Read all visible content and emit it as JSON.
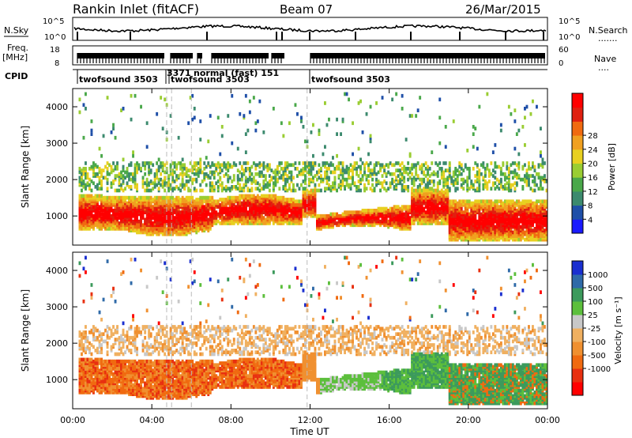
{
  "header": {
    "station": "Rankin Inlet (fitACF)",
    "beam": "Beam 07",
    "date": "26/Mar/2015"
  },
  "left_labels": {
    "nsky": "N.Sky",
    "freq": "Freq.",
    "freq_unit": "[MHz]",
    "cpid": "CPID"
  },
  "right_labels": {
    "nsearch": "N.Search",
    "nave": "Nave"
  },
  "top_panel_ticks": {
    "nsky_left": [
      "10^5",
      "10^0"
    ],
    "nsky_right": [
      "10^5",
      "10^0"
    ],
    "freq_left": [
      "18",
      "8"
    ],
    "nave_right": [
      "60",
      "0"
    ]
  },
  "cpid_labels": [
    "twofsound 3503",
    "3371",
    "normal (fast) 151",
    "twofsound 3503",
    "twofsound 3503"
  ],
  "colors": {
    "power": [
      "#1a1aff",
      "#1f4fa8",
      "#3c8a6e",
      "#4aa84a",
      "#9acd32",
      "#e8d020",
      "#f0a020",
      "#f06a10",
      "#e02010",
      "#ff0000"
    ],
    "velocity": [
      "#ff0000",
      "#e83010",
      "#f06a10",
      "#f09030",
      "#f0b060",
      "#c8c8c8",
      "#5cbf3c",
      "#3c9a5c",
      "#2f6aa8",
      "#1a2fd0"
    ]
  },
  "chart_data": [
    {
      "type": "heatmap",
      "title": "",
      "xlabel": "",
      "ylabel": "Slant Range [km]",
      "xlim": [
        "00:00",
        "24:00"
      ],
      "ylim": [
        200,
        4500
      ],
      "x_ticks": [
        "00:00",
        "04:00",
        "08:00",
        "12:00",
        "16:00",
        "20:00",
        "00:00"
      ],
      "y_ticks": [
        1000,
        2000,
        3000,
        4000
      ],
      "colorbar": {
        "label": "Power [dB]",
        "ticks": [
          4,
          8,
          12,
          16,
          20,
          24,
          28
        ],
        "range": [
          0,
          30
        ]
      },
      "description_values": {
        "main_echo_band_km": [
          600,
          1500
        ],
        "secondary_band_km": [
          1800,
          2400
        ],
        "peak_power_db": 30
      }
    },
    {
      "type": "heatmap",
      "title": "",
      "xlabel": "Time UT",
      "ylabel": "Slant Range [km]",
      "xlim": [
        "00:00",
        "24:00"
      ],
      "ylim": [
        200,
        4500
      ],
      "x_ticks": [
        "00:00",
        "04:00",
        "08:00",
        "12:00",
        "16:00",
        "20:00",
        "00:00"
      ],
      "y_ticks": [
        1000,
        2000,
        3000,
        4000
      ],
      "colorbar": {
        "label": "Velocity [m s⁻¹]",
        "ticks": [
          1000,
          500,
          100,
          25,
          -25,
          -100,
          -500,
          -1000
        ]
      }
    }
  ]
}
